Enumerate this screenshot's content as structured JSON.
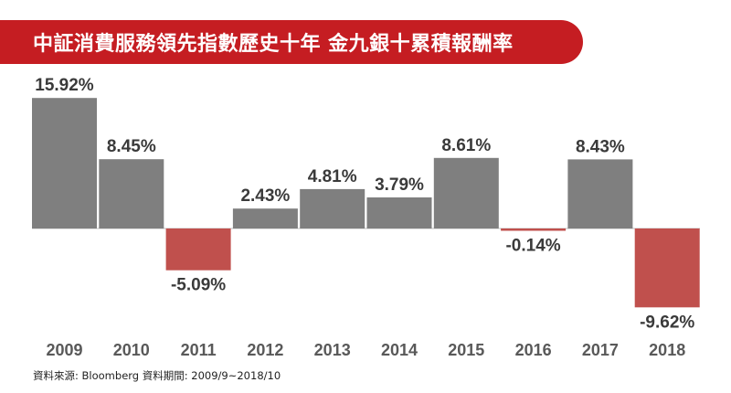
{
  "title": "中証消費服務領先指數歷史十年 金九銀十累積報酬率",
  "source_note": "資料來源: Bloomberg 資料期間: 2009/9~2018/10",
  "colors": {
    "banner": "#c51d22",
    "positive_bar": "#7f7f7f",
    "negative_bar": "#c0504d",
    "text": "#3a3a3a",
    "baseline": "#bfbfbf"
  },
  "chart_data": {
    "type": "bar",
    "categories": [
      "2009",
      "2010",
      "2011",
      "2012",
      "2013",
      "2014",
      "2015",
      "2016",
      "2017",
      "2018"
    ],
    "values": [
      15.92,
      8.45,
      -5.09,
      2.43,
      4.81,
      3.79,
      8.61,
      -0.14,
      8.43,
      -9.62
    ],
    "labels": [
      "15.92%",
      "8.45%",
      "-5.09%",
      "2.43%",
      "4.81%",
      "3.79%",
      "8.61%",
      "-0.14%",
      "8.43%",
      "-9.62%"
    ],
    "unit": "%",
    "title": "中証消費服務領先指數歷史十年 金九銀十累積報酬率",
    "xlabel": "",
    "ylabel": "",
    "grid": false,
    "legend": "none"
  }
}
